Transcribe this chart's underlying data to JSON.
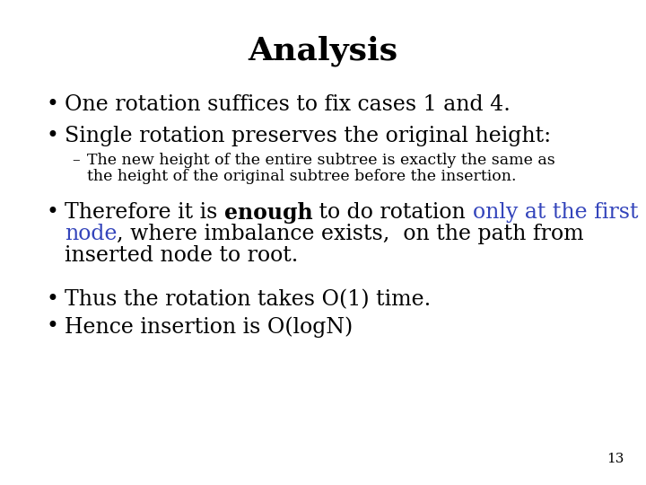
{
  "title": "Analysis",
  "title_fontsize": 26,
  "title_fontweight": "bold",
  "title_fontfamily": "serif",
  "background_color": "#ffffff",
  "text_color": "#000000",
  "blue_color": "#3344bb",
  "page_number": "13",
  "bullet_fontsize": 17,
  "sub_bullet_fontsize": 12.5,
  "bullet1": "One rotation suffices to fix cases 1 and 4.",
  "bullet2": "Single rotation preserves the original height:",
  "sub_bullet_line1": "The new height of the entire subtree is exactly the same as",
  "sub_bullet_line2": "the height of the original subtree before the insertion.",
  "bullet4": "Thus the rotation takes O(1) time.",
  "bullet5": "Hence insertion is O(logN)"
}
